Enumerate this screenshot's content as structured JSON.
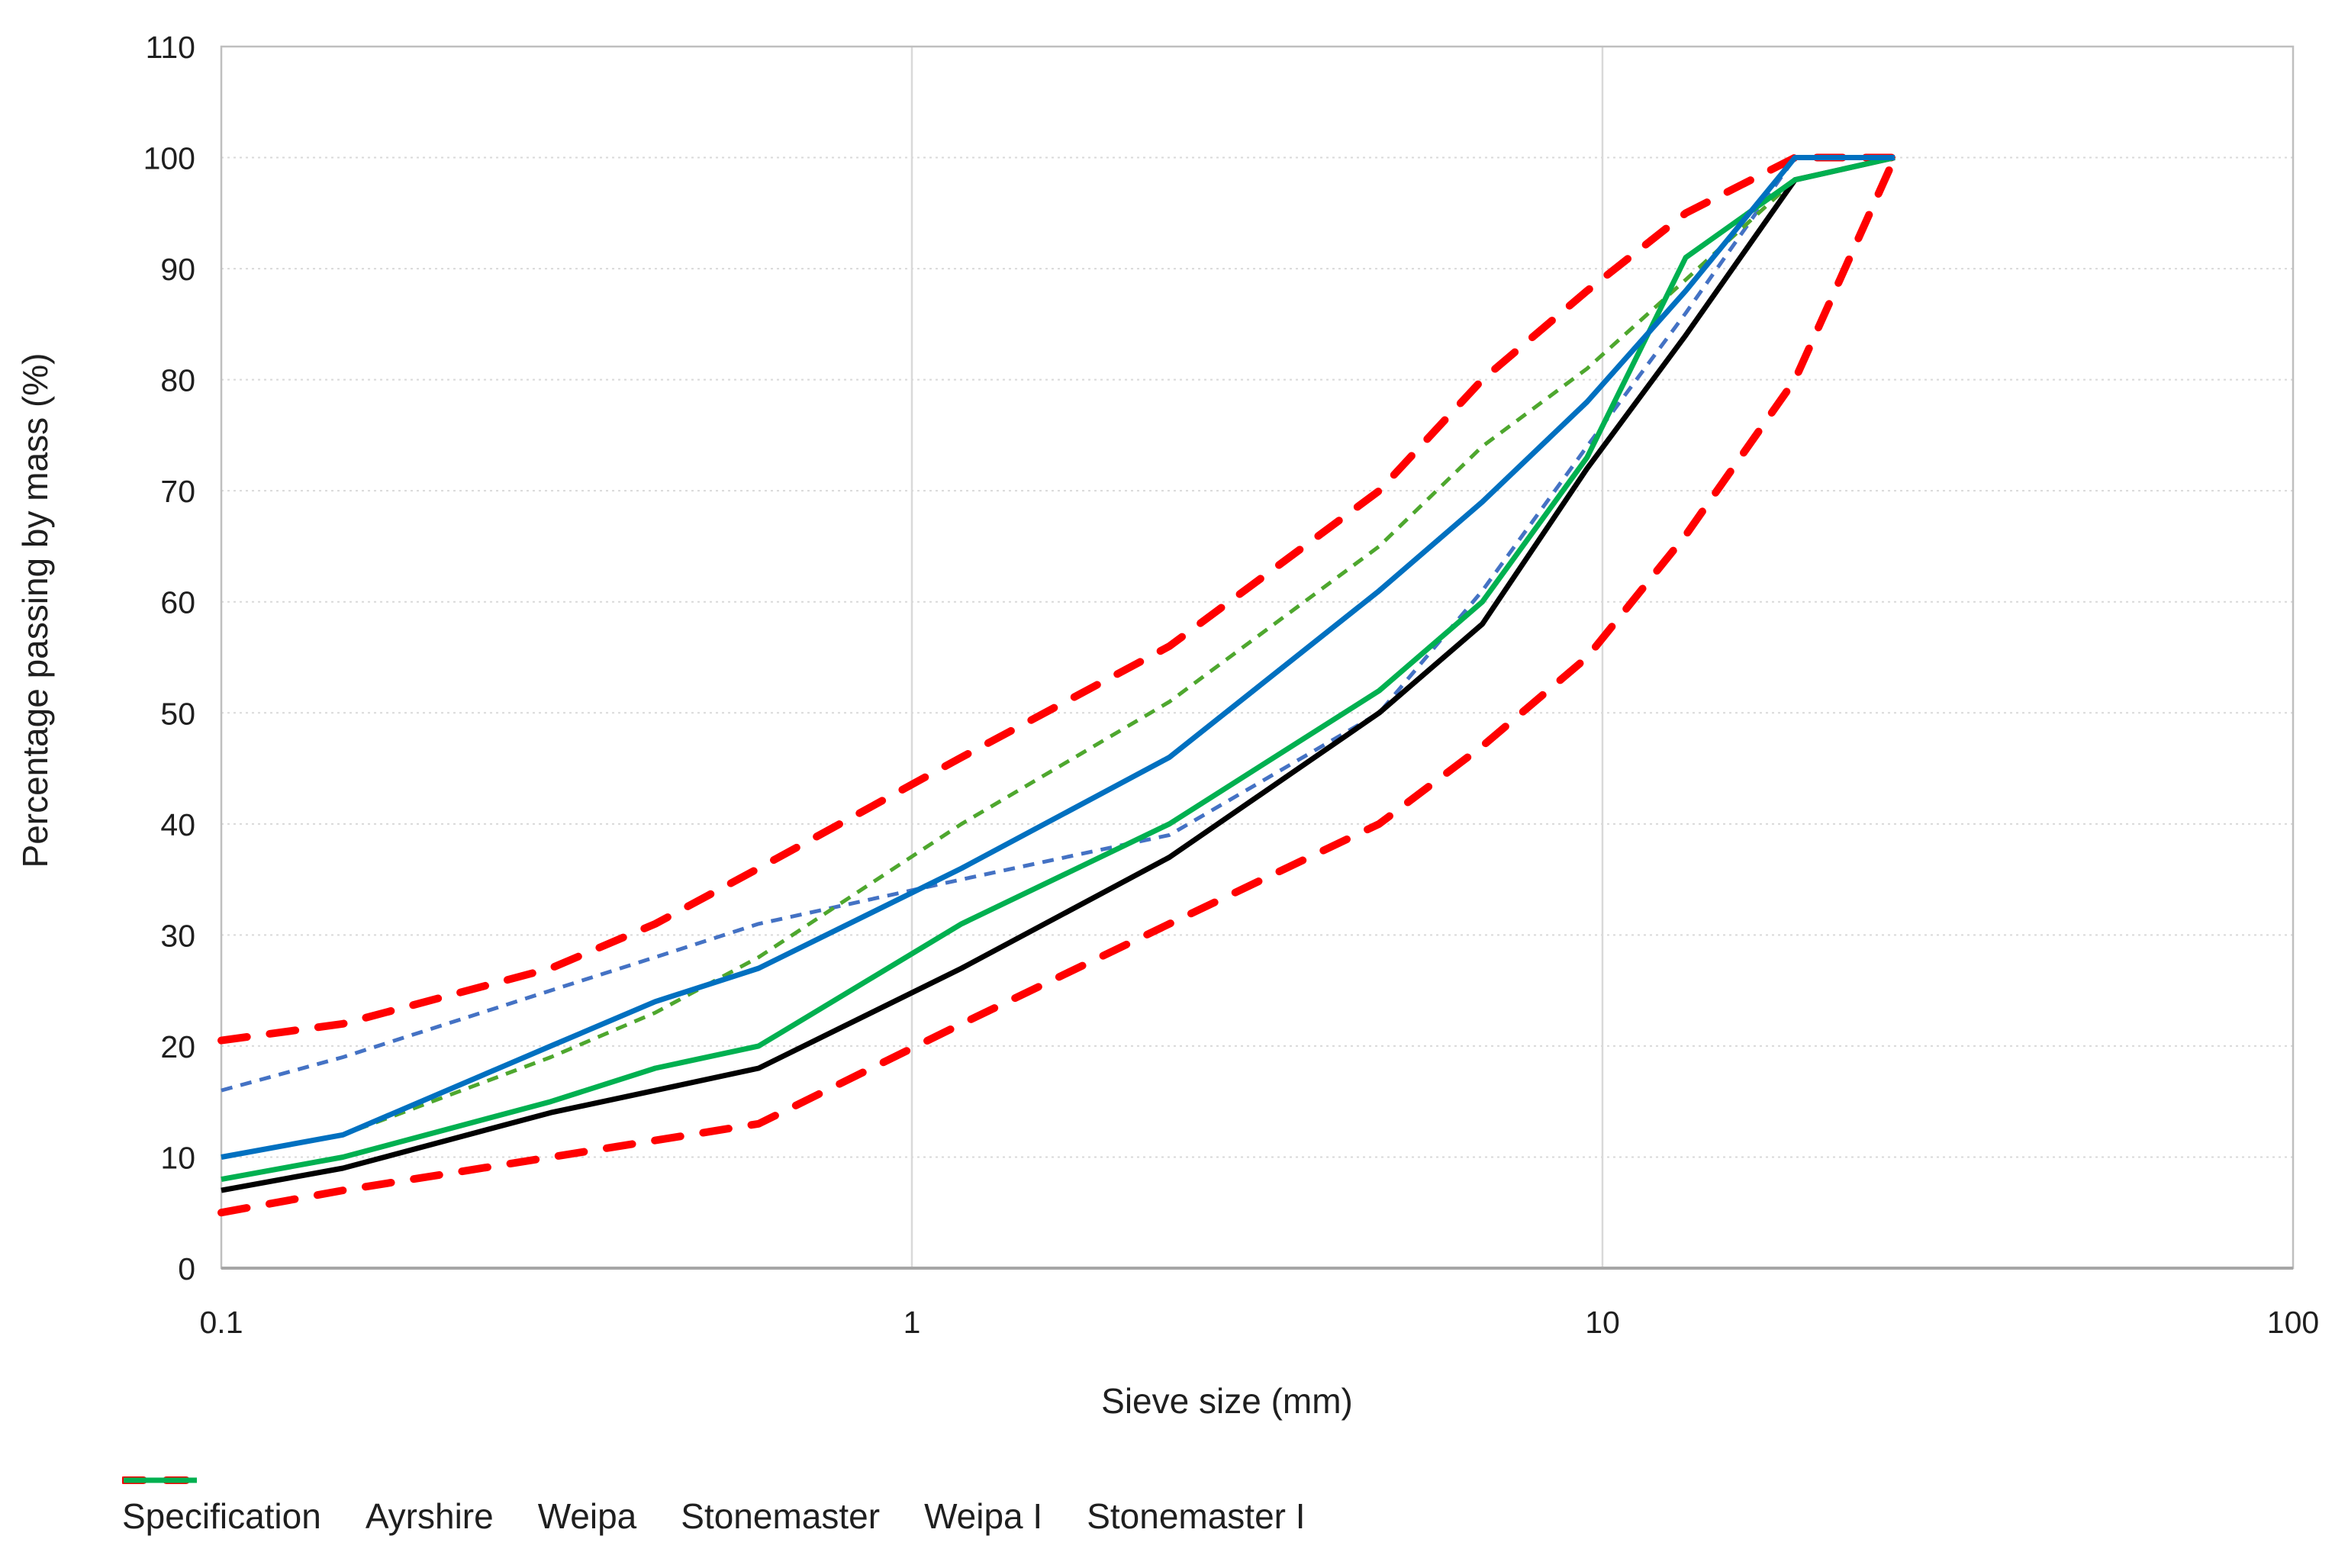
{
  "figure": {
    "background": "#FFFFFF",
    "text_color": "#1F1F1F",
    "grid_color": "#D9D9D9",
    "border_color": "#BFBFBF"
  },
  "chart_data": {
    "type": "line",
    "title": "",
    "xlabel": "Sieve size (mm)",
    "ylabel": "Percentage passing by mass (%)",
    "x_scale": "log10",
    "xlim": [
      0.1,
      100
    ],
    "ylim": [
      0,
      110
    ],
    "x_ticks": [
      "0.1",
      "1",
      "10",
      "100"
    ],
    "x_tick_values": [
      0.1,
      1,
      10,
      100
    ],
    "y_ticks": [
      0,
      10,
      20,
      30,
      40,
      50,
      60,
      70,
      80,
      90,
      100,
      110
    ],
    "grid": {
      "horizontal": "every 10 percent, dotted light gray",
      "vertical": "at decades 1 and 10"
    },
    "legend_position": "bottom",
    "sieve_sizes_mm": [
      0.1,
      0.15,
      0.3,
      0.425,
      0.6,
      1.18,
      2.36,
      4.75,
      6.7,
      9.5,
      13.2,
      19,
      26.5
    ],
    "series": [
      {
        "key": "spec_upper",
        "name": "Specification",
        "envelope": "upper",
        "color": "#FF0000",
        "line": "spec-dash",
        "values": [
          20.5,
          22,
          27,
          31,
          36,
          46,
          56,
          70,
          80,
          88,
          95,
          100,
          100
        ]
      },
      {
        "key": "spec_lower",
        "name": "Specification",
        "envelope": "lower",
        "color": "#FF0000",
        "line": "spec-dash",
        "values": [
          5,
          7,
          10,
          11.5,
          13,
          22,
          31,
          40,
          47,
          55,
          66,
          80,
          100
        ]
      },
      {
        "key": "weipa",
        "name": "Weipa",
        "color": "#4472C4",
        "line": "dash",
        "values": [
          16,
          19,
          25,
          28,
          31,
          35,
          39,
          50,
          61,
          74,
          86,
          100,
          100
        ]
      },
      {
        "key": "stonemaster",
        "name": "Stonemaster",
        "color": "#4EA72E",
        "line": "dash",
        "values": [
          10,
          12,
          19,
          23,
          28,
          40,
          51,
          65,
          74,
          81,
          89,
          98,
          100
        ]
      },
      {
        "key": "ayrshire",
        "name": "Ayrshire",
        "color": "#000000",
        "line": "solid",
        "values": [
          7,
          9,
          14,
          16,
          18,
          27,
          37,
          50,
          58,
          72,
          84,
          98,
          100
        ]
      },
      {
        "key": "stonemaster_i",
        "name": "Stonemaster I",
        "color": "#00B050",
        "line": "solid",
        "values": [
          8,
          10,
          15,
          18,
          20,
          31,
          40,
          52,
          60,
          73,
          91,
          98,
          100
        ]
      },
      {
        "key": "weipa_i",
        "name": "Weipa I",
        "color": "#0070C0",
        "line": "solid",
        "values": [
          10,
          12,
          20,
          24,
          27,
          36,
          46,
          61,
          69,
          78,
          88,
          100,
          100
        ]
      }
    ],
    "legend": [
      {
        "label": "Specification",
        "color": "#FF0000",
        "line": "spec-dash"
      },
      {
        "label": "Ayrshire",
        "color": "#000000",
        "line": "solid"
      },
      {
        "label": "Weipa",
        "color": "#4472C4",
        "line": "dash"
      },
      {
        "label": "Stonemaster",
        "color": "#4EA72E",
        "line": "dash"
      },
      {
        "label": "Weipa I",
        "color": "#0070C0",
        "line": "solid"
      },
      {
        "label": "Stonemaster I",
        "color": "#00B050",
        "line": "solid"
      }
    ]
  }
}
